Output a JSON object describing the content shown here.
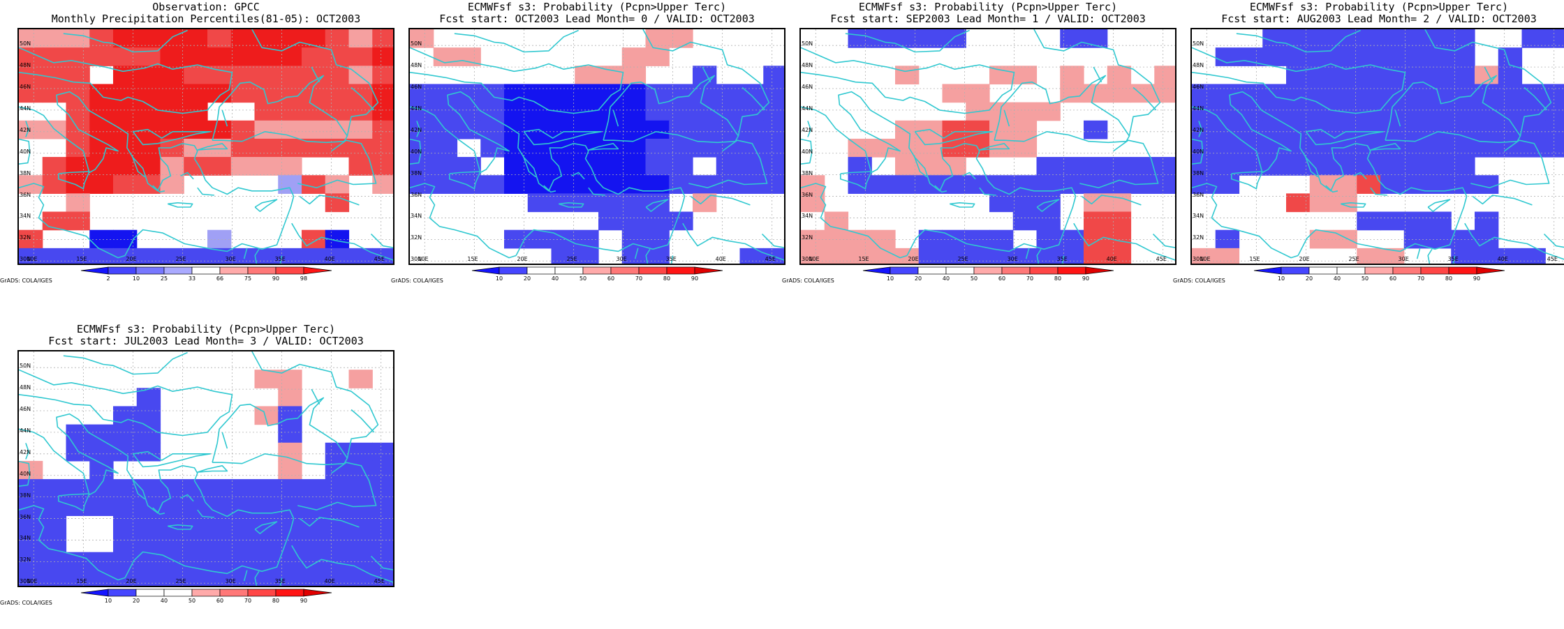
{
  "credit": "GrADS: COLA/IGES",
  "lat_labels": [
    "50N",
    "48N",
    "46N",
    "44N",
    "42N",
    "40N",
    "38N",
    "36N",
    "34N",
    "32N",
    "30N"
  ],
  "lon_labels": [
    "10E",
    "15E",
    "20E",
    "25E",
    "30E",
    "35E",
    "40E",
    "45E"
  ],
  "domain": {
    "lon_min": 8.5,
    "lon_max": 46.5,
    "lat_min": 29.5,
    "lat_max": 51.5
  },
  "coast_color": "#30c8d0",
  "obs_colorbar": {
    "labels": [
      "2",
      "10",
      "25",
      "33",
      "66",
      "75",
      "90",
      "98"
    ],
    "colors": [
      "#1414ff",
      "#4646ff",
      "#7878ff",
      "#aaaaff",
      "#ffffff",
      "#ffaaaa",
      "#ff7878",
      "#ff4646",
      "#ff1414"
    ]
  },
  "prob_colorbar": {
    "labels": [
      "10",
      "20",
      "40",
      "50",
      "60",
      "70",
      "80",
      "90"
    ],
    "colors": [
      "#1414ff",
      "#4646ff",
      "#ffffff",
      "#ffffff",
      "#ffaaaa",
      "#ff7878",
      "#ff4646",
      "#ff1414",
      "#e00000"
    ]
  },
  "palette": {
    "R": "#ee1c1c",
    "r": "#f04848",
    "p": "#f5a0a0",
    "B": "#1414f0",
    "b": "#4848f0",
    "l": "#a0a0f5",
    ".": "#ffffff"
  },
  "panels": [
    {
      "title1": "Observation: GPCC",
      "title2": "Monthly Precipitation Percentiles(81-05): OCT2003",
      "colorbar": "obs",
      "grid": [
        "ppprRRRRrRRRRrpr",
        "rrrrrrRRRRRRrrrR",
        "rrr.RRRrrrrrrrpr",
        "rrrRRRRRRrrrrrrR",
        "..rRRRRR..rrrrrR",
        "pprRRRRRRrpppppr",
        "..rRRRrpprrrrrrr",
        ".rRRRRprrppp..rr",
        "prRRrrp....lrp.p",
        "..p..........r..",
        ".rr.............",
        "r..BB...l...rB..",
        "bbbbbbbbbbbbbbbb"
      ]
    },
    {
      "title1": "ECMWFsf s3: Probability (Pcpn>Upper Terc)",
      "title2": "Fcst start: OCT2003  Lead Month= 0 / VALID: OCT2003",
      "colorbar": "prob",
      "grid": [
        "p.........pp....",
        ".pp......pp.....",
        ".......ppp..b..b",
        "bbbbBBBBBBbbbbbb",
        "bbbbBBBBBBbbbbbb",
        "bbbbBBBBBBBbbbbb",
        "bb.bBBBBBBbbbbbb",
        "bbb.BBBBBBbb.bbb",
        "bbbbBBBBBBBbbbbb",
        ".....bbbbbb.p...",
        "........bbbb....",
        "....bbbb.bb.....",
        "......bb.bb...bb"
      ]
    },
    {
      "title1": "ECMWFsf s3: Probability (Pcpn>Upper Terc)",
      "title2": "Fcst start: SEP2003  Lead Month= 1 / VALID: OCT2003",
      "colorbar": "prob",
      "grid": [
        "..bbbbb....bb...",
        "................",
        "....p...pp.p.p.p",
        "......pp...ppppp",
        ".......pppp.....",
        "....pprrpp..b...",
        "..pppprrpp......",
        "..b.ppp...bbbbbb",
        "p.bbbbbbbbbbbbbb",
        "p.......bbb.pp..",
        ".p.......bb.rr..",
        "pppp.bbbb.bbrr..",
        "pppppbbbbbbbrr.."
      ]
    },
    {
      "title1": "ECMWFsf s3: Probability (Pcpn>Upper Terc)",
      "title2": "Fcst start: AUG2003  Lead Month= 2 / VALID: OCT2003",
      "colorbar": "prob",
      "grid": [
        "...bbbbbbbbb..bb",
        ".bbbbbbbbbbb.b..",
        "....bbbbbbbbpb..",
        "bbbbbbbbbbbbbbbb",
        "bbbbbbbbbbbbbbbb",
        "bbbbbbbbbbbbbbbb",
        "bbbbbbbbbbbbbbbb",
        "bbbbbbbbbbbb....",
        "bb...pprbbbbb...",
        "....rpp.........",
        ".......bbbb.b...",
        ".b...pp..bbbb...",
        "pp.....pp..bbbb."
      ]
    },
    {
      "title1": "ECMWFsf s3: Probability (Pcpn>Upper Terc)",
      "title2": "Fcst start: JUL2003  Lead Month= 3 / VALID: OCT2003",
      "colorbar": "prob",
      "grid": [
        "................",
        "..........pp..p.",
        ".....b.....p....",
        "....bb....pb....",
        "..bbbb.....b....",
        "..bbbb.....p.bbb",
        "p..b.......p.bbb",
        "bbbbbbbbbbbbbbbb",
        "bbbbbbbbbbbbbbbb",
        "bb..bbbbbbbbbbbb",
        "bb..bbbbbbbbbbbb",
        "bbbbbbbbbbbbbbbb",
        "bbbbbbbbbbbbbbbb"
      ]
    }
  ]
}
